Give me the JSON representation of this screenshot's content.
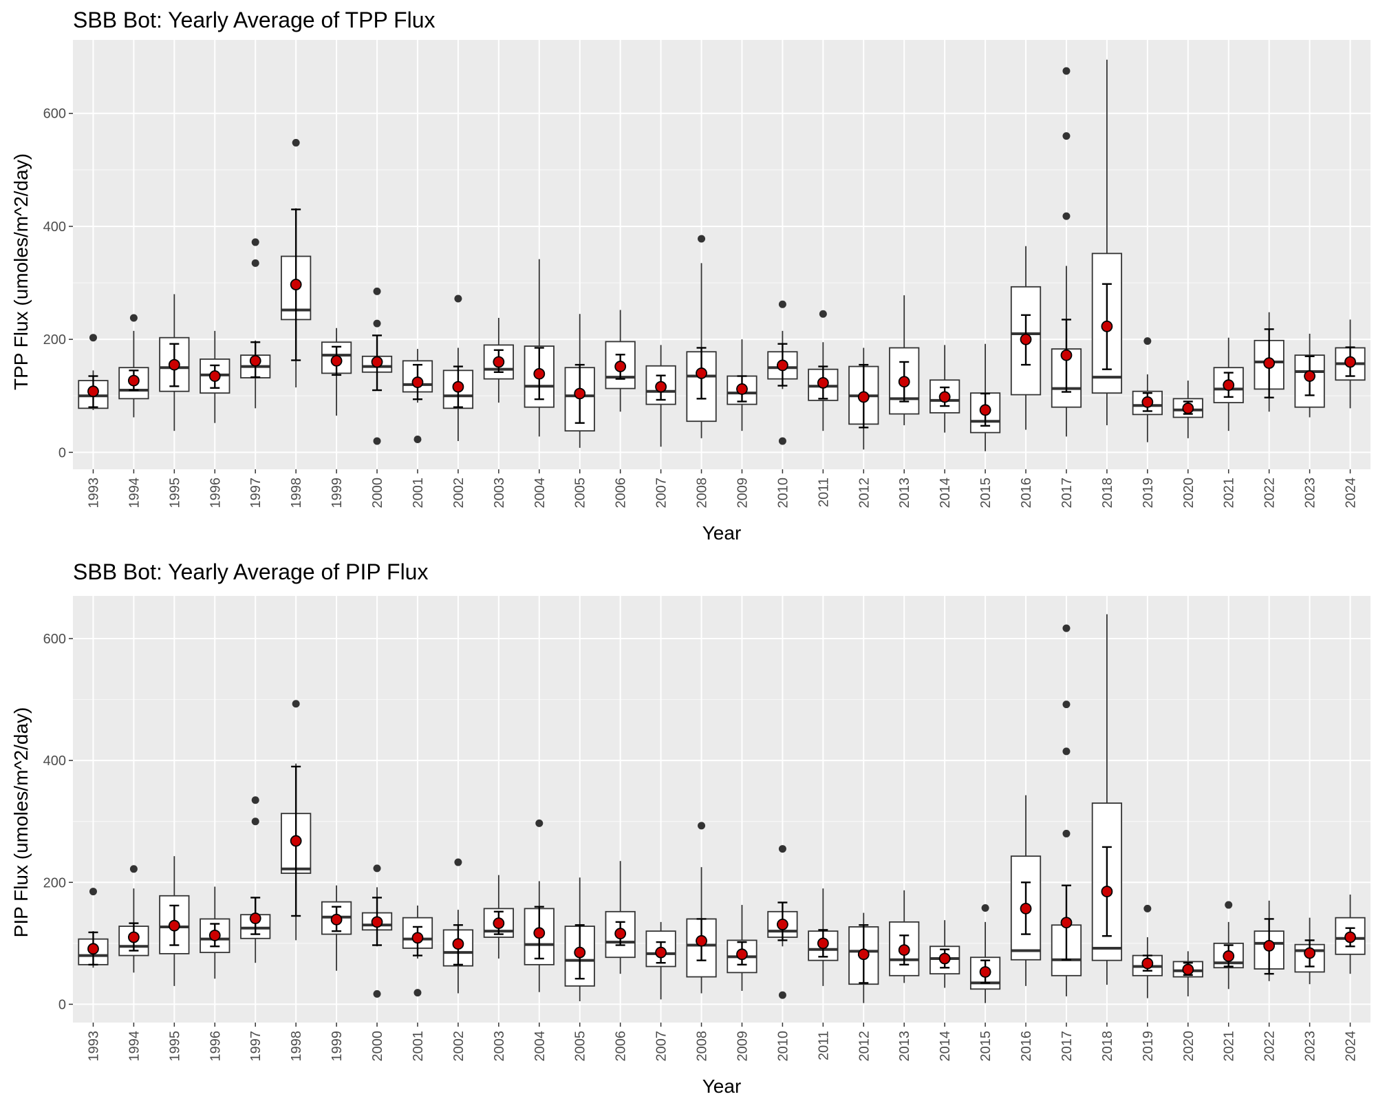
{
  "chart_data": [
    {
      "type": "box",
      "title": "SBB Bot: Yearly Average of TPP Flux",
      "xlabel": "Year",
      "ylabel": "TPP Flux (umoles/m^2/day)",
      "ylim": [
        -30,
        730
      ],
      "yticks": [
        0,
        200,
        400,
        600
      ],
      "grid": true,
      "categories": [
        "1993",
        "1994",
        "1995",
        "1996",
        "1997",
        "1998",
        "1999",
        "2000",
        "2001",
        "2002",
        "2003",
        "2004",
        "2005",
        "2006",
        "2007",
        "2008",
        "2009",
        "2010",
        "2011",
        "2012",
        "2013",
        "2014",
        "2015",
        "2016",
        "2017",
        "2018",
        "2019",
        "2020",
        "2021",
        "2022",
        "2023",
        "2024"
      ],
      "boxes": [
        {
          "q1": 78,
          "median": 100,
          "q3": 127,
          "whisker_low": 75,
          "whisker_high": 145,
          "outliers": [
            203
          ]
        },
        {
          "q1": 95,
          "median": 110,
          "q3": 150,
          "whisker_low": 62,
          "whisker_high": 215,
          "outliers": [
            238
          ]
        },
        {
          "q1": 108,
          "median": 150,
          "q3": 203,
          "whisker_low": 38,
          "whisker_high": 280,
          "outliers": []
        },
        {
          "q1": 105,
          "median": 137,
          "q3": 165,
          "whisker_low": 52,
          "whisker_high": 215,
          "outliers": []
        },
        {
          "q1": 132,
          "median": 152,
          "q3": 172,
          "whisker_low": 78,
          "whisker_high": 198,
          "outliers": [
            335,
            372
          ]
        },
        {
          "q1": 235,
          "median": 252,
          "q3": 347,
          "whisker_low": 115,
          "whisker_high": 432,
          "outliers": [
            548
          ]
        },
        {
          "q1": 140,
          "median": 172,
          "q3": 195,
          "whisker_low": 65,
          "whisker_high": 220,
          "outliers": []
        },
        {
          "q1": 142,
          "median": 152,
          "q3": 170,
          "whisker_low": 110,
          "whisker_high": 205,
          "outliers": [
            20,
            228,
            285
          ]
        },
        {
          "q1": 107,
          "median": 120,
          "q3": 162,
          "whisker_low": 88,
          "whisker_high": 183,
          "outliers": [
            23
          ]
        },
        {
          "q1": 78,
          "median": 100,
          "q3": 145,
          "whisker_low": 20,
          "whisker_high": 185,
          "outliers": [
            272
          ]
        },
        {
          "q1": 130,
          "median": 147,
          "q3": 190,
          "whisker_low": 88,
          "whisker_high": 238,
          "outliers": []
        },
        {
          "q1": 80,
          "median": 117,
          "q3": 188,
          "whisker_low": 28,
          "whisker_high": 342,
          "outliers": []
        },
        {
          "q1": 38,
          "median": 100,
          "q3": 150,
          "whisker_low": 8,
          "whisker_high": 245,
          "outliers": []
        },
        {
          "q1": 113,
          "median": 133,
          "q3": 196,
          "whisker_low": 72,
          "whisker_high": 252,
          "outliers": []
        },
        {
          "q1": 85,
          "median": 108,
          "q3": 153,
          "whisker_low": 10,
          "whisker_high": 190,
          "outliers": []
        },
        {
          "q1": 55,
          "median": 135,
          "q3": 178,
          "whisker_low": 25,
          "whisker_high": 335,
          "outliers": [
            378
          ]
        },
        {
          "q1": 85,
          "median": 105,
          "q3": 135,
          "whisker_low": 38,
          "whisker_high": 200,
          "outliers": []
        },
        {
          "q1": 130,
          "median": 150,
          "q3": 178,
          "whisker_low": 112,
          "whisker_high": 215,
          "outliers": [
            20,
            262
          ]
        },
        {
          "q1": 92,
          "median": 117,
          "q3": 147,
          "whisker_low": 38,
          "whisker_high": 195,
          "outliers": [
            245
          ]
        },
        {
          "q1": 50,
          "median": 100,
          "q3": 152,
          "whisker_low": 5,
          "whisker_high": 185,
          "outliers": []
        },
        {
          "q1": 68,
          "median": 95,
          "q3": 185,
          "whisker_low": 48,
          "whisker_high": 278,
          "outliers": []
        },
        {
          "q1": 70,
          "median": 92,
          "q3": 128,
          "whisker_low": 35,
          "whisker_high": 190,
          "outliers": []
        },
        {
          "q1": 35,
          "median": 55,
          "q3": 105,
          "whisker_low": 2,
          "whisker_high": 192,
          "outliers": []
        },
        {
          "q1": 102,
          "median": 210,
          "q3": 293,
          "whisker_low": 40,
          "whisker_high": 365,
          "outliers": []
        },
        {
          "q1": 80,
          "median": 113,
          "q3": 183,
          "whisker_low": 28,
          "whisker_high": 330,
          "outliers": [
            418,
            560,
            675
          ]
        },
        {
          "q1": 105,
          "median": 133,
          "q3": 352,
          "whisker_low": 48,
          "whisker_high": 695,
          "outliers": []
        },
        {
          "q1": 67,
          "median": 83,
          "q3": 108,
          "whisker_low": 18,
          "whisker_high": 138,
          "outliers": [
            197
          ]
        },
        {
          "q1": 62,
          "median": 75,
          "q3": 95,
          "whisker_low": 25,
          "whisker_high": 127,
          "outliers": []
        },
        {
          "q1": 88,
          "median": 112,
          "q3": 150,
          "whisker_low": 38,
          "whisker_high": 203,
          "outliers": []
        },
        {
          "q1": 112,
          "median": 160,
          "q3": 198,
          "whisker_low": 72,
          "whisker_high": 248,
          "outliers": []
        },
        {
          "q1": 80,
          "median": 143,
          "q3": 172,
          "whisker_low": 62,
          "whisker_high": 210,
          "outliers": []
        },
        {
          "q1": 128,
          "median": 157,
          "q3": 185,
          "whisker_low": 78,
          "whisker_high": 235,
          "outliers": []
        }
      ],
      "means": [
        108,
        127,
        155,
        135,
        162,
        297,
        162,
        160,
        124,
        116,
        160,
        139,
        104,
        152,
        116,
        140,
        112,
        154,
        123,
        98,
        125,
        98,
        75,
        200,
        172,
        223,
        89,
        78,
        119,
        158,
        135,
        160
      ],
      "error_bars": [
        [
          80,
          135
        ],
        [
          110,
          145
        ],
        [
          117,
          192
        ],
        [
          114,
          154
        ],
        [
          133,
          195
        ],
        [
          163,
          430
        ],
        [
          137,
          187
        ],
        [
          110,
          207
        ],
        [
          94,
          155
        ],
        [
          80,
          152
        ],
        [
          142,
          181
        ],
        [
          94,
          185
        ],
        [
          52,
          155
        ],
        [
          130,
          173
        ],
        [
          93,
          136
        ],
        [
          95,
          185
        ],
        [
          90,
          135
        ],
        [
          118,
          192
        ],
        [
          95,
          152
        ],
        [
          44,
          155
        ],
        [
          90,
          160
        ],
        [
          82,
          115
        ],
        [
          47,
          104
        ],
        [
          155,
          243
        ],
        [
          107,
          235
        ],
        [
          147,
          298
        ],
        [
          73,
          105
        ],
        [
          68,
          90
        ],
        [
          98,
          141
        ],
        [
          97,
          218
        ],
        [
          101,
          170
        ],
        [
          135,
          186
        ]
      ],
      "point_color": "#cc0000"
    },
    {
      "type": "box",
      "title": "SBB Bot: Yearly Average of PIP Flux",
      "xlabel": "Year",
      "ylabel": "PIP Flux (umoles/m^2/day)",
      "ylim": [
        -30,
        670
      ],
      "yticks": [
        0,
        200,
        400,
        600
      ],
      "grid": true,
      "categories": [
        "1993",
        "1994",
        "1995",
        "1996",
        "1997",
        "1998",
        "1999",
        "2000",
        "2001",
        "2002",
        "2003",
        "2004",
        "2005",
        "2006",
        "2007",
        "2008",
        "2009",
        "2010",
        "2011",
        "2012",
        "2013",
        "2014",
        "2015",
        "2016",
        "2017",
        "2018",
        "2019",
        "2020",
        "2021",
        "2022",
        "2023",
        "2024"
      ],
      "boxes": [
        {
          "q1": 65,
          "median": 80,
          "q3": 107,
          "whisker_low": 60,
          "whisker_high": 120,
          "outliers": [
            185
          ]
        },
        {
          "q1": 80,
          "median": 95,
          "q3": 128,
          "whisker_low": 52,
          "whisker_high": 190,
          "outliers": [
            222
          ]
        },
        {
          "q1": 83,
          "median": 127,
          "q3": 178,
          "whisker_low": 30,
          "whisker_high": 243,
          "outliers": []
        },
        {
          "q1": 85,
          "median": 107,
          "q3": 140,
          "whisker_low": 42,
          "whisker_high": 193,
          "outliers": []
        },
        {
          "q1": 108,
          "median": 125,
          "q3": 147,
          "whisker_low": 68,
          "whisker_high": 175,
          "outliers": [
            300,
            335
          ]
        },
        {
          "q1": 215,
          "median": 222,
          "q3": 313,
          "whisker_low": 105,
          "whisker_high": 395,
          "outliers": [
            493
          ]
        },
        {
          "q1": 115,
          "median": 143,
          "q3": 168,
          "whisker_low": 55,
          "whisker_high": 195,
          "outliers": []
        },
        {
          "q1": 122,
          "median": 130,
          "q3": 150,
          "whisker_low": 95,
          "whisker_high": 192,
          "outliers": [
            17,
            223
          ]
        },
        {
          "q1": 92,
          "median": 107,
          "q3": 142,
          "whisker_low": 75,
          "whisker_high": 162,
          "outliers": [
            19
          ]
        },
        {
          "q1": 63,
          "median": 85,
          "q3": 122,
          "whisker_low": 18,
          "whisker_high": 155,
          "outliers": [
            233
          ]
        },
        {
          "q1": 110,
          "median": 120,
          "q3": 157,
          "whisker_low": 75,
          "whisker_high": 212,
          "outliers": []
        },
        {
          "q1": 65,
          "median": 98,
          "q3": 157,
          "whisker_low": 20,
          "whisker_high": 202,
          "outliers": [
            297
          ]
        },
        {
          "q1": 30,
          "median": 72,
          "q3": 128,
          "whisker_low": 5,
          "whisker_high": 208,
          "outliers": []
        },
        {
          "q1": 77,
          "median": 102,
          "q3": 152,
          "whisker_low": 50,
          "whisker_high": 235,
          "outliers": []
        },
        {
          "q1": 62,
          "median": 83,
          "q3": 120,
          "whisker_low": 8,
          "whisker_high": 135,
          "outliers": []
        },
        {
          "q1": 45,
          "median": 97,
          "q3": 140,
          "whisker_low": 18,
          "whisker_high": 225,
          "outliers": [
            293
          ]
        },
        {
          "q1": 52,
          "median": 78,
          "q3": 105,
          "whisker_low": 22,
          "whisker_high": 163,
          "outliers": []
        },
        {
          "q1": 110,
          "median": 120,
          "q3": 152,
          "whisker_low": 95,
          "whisker_high": 165,
          "outliers": [
            15,
            255
          ]
        },
        {
          "q1": 72,
          "median": 90,
          "q3": 120,
          "whisker_low": 30,
          "whisker_high": 190,
          "outliers": []
        },
        {
          "q1": 33,
          "median": 87,
          "q3": 127,
          "whisker_low": 2,
          "whisker_high": 150,
          "outliers": []
        },
        {
          "q1": 47,
          "median": 73,
          "q3": 135,
          "whisker_low": 35,
          "whisker_high": 187,
          "outliers": []
        },
        {
          "q1": 50,
          "median": 75,
          "q3": 95,
          "whisker_low": 27,
          "whisker_high": 138,
          "outliers": []
        },
        {
          "q1": 25,
          "median": 35,
          "q3": 77,
          "whisker_low": 2,
          "whisker_high": 135,
          "outliers": [
            158
          ]
        },
        {
          "q1": 73,
          "median": 88,
          "q3": 243,
          "whisker_low": 30,
          "whisker_high": 343,
          "outliers": []
        },
        {
          "q1": 47,
          "median": 73,
          "q3": 130,
          "whisker_low": 13,
          "whisker_high": 195,
          "outliers": [
            280,
            415,
            492,
            617
          ]
        },
        {
          "q1": 72,
          "median": 92,
          "q3": 330,
          "whisker_low": 32,
          "whisker_high": 640,
          "outliers": []
        },
        {
          "q1": 47,
          "median": 62,
          "q3": 80,
          "whisker_low": 10,
          "whisker_high": 110,
          "outliers": [
            157
          ]
        },
        {
          "q1": 45,
          "median": 55,
          "q3": 70,
          "whisker_low": 13,
          "whisker_high": 87,
          "outliers": []
        },
        {
          "q1": 60,
          "median": 68,
          "q3": 100,
          "whisker_low": 25,
          "whisker_high": 135,
          "outliers": [
            163
          ]
        },
        {
          "q1": 58,
          "median": 100,
          "q3": 120,
          "whisker_low": 38,
          "whisker_high": 170,
          "outliers": []
        },
        {
          "q1": 53,
          "median": 88,
          "q3": 98,
          "whisker_low": 33,
          "whisker_high": 142,
          "outliers": []
        },
        {
          "q1": 82,
          "median": 108,
          "q3": 142,
          "whisker_low": 50,
          "whisker_high": 180,
          "outliers": []
        }
      ],
      "means": [
        91,
        110,
        129,
        113,
        141,
        268,
        139,
        135,
        109,
        99,
        133,
        117,
        85,
        116,
        85,
        104,
        82,
        131,
        100,
        82,
        89,
        75,
        53,
        157,
        134,
        185,
        67,
        57,
        79,
        96,
        84,
        110
      ],
      "error_bars": [
        [
          65,
          118
        ],
        [
          88,
          133
        ],
        [
          97,
          162
        ],
        [
          95,
          132
        ],
        [
          115,
          175
        ],
        [
          145,
          390
        ],
        [
          120,
          160
        ],
        [
          97,
          175
        ],
        [
          80,
          127
        ],
        [
          65,
          130
        ],
        [
          115,
          152
        ],
        [
          75,
          160
        ],
        [
          42,
          130
        ],
        [
          97,
          135
        ],
        [
          68,
          102
        ],
        [
          72,
          140
        ],
        [
          65,
          102
        ],
        [
          105,
          167
        ],
        [
          78,
          122
        ],
        [
          35,
          130
        ],
        [
          65,
          113
        ],
        [
          60,
          90
        ],
        [
          35,
          72
        ],
        [
          115,
          200
        ],
        [
          73,
          195
        ],
        [
          112,
          258
        ],
        [
          55,
          80
        ],
        [
          48,
          68
        ],
        [
          62,
          97
        ],
        [
          50,
          140
        ],
        [
          62,
          105
        ],
        [
          95,
          125
        ]
      ],
      "point_color": "#cc0000"
    }
  ]
}
